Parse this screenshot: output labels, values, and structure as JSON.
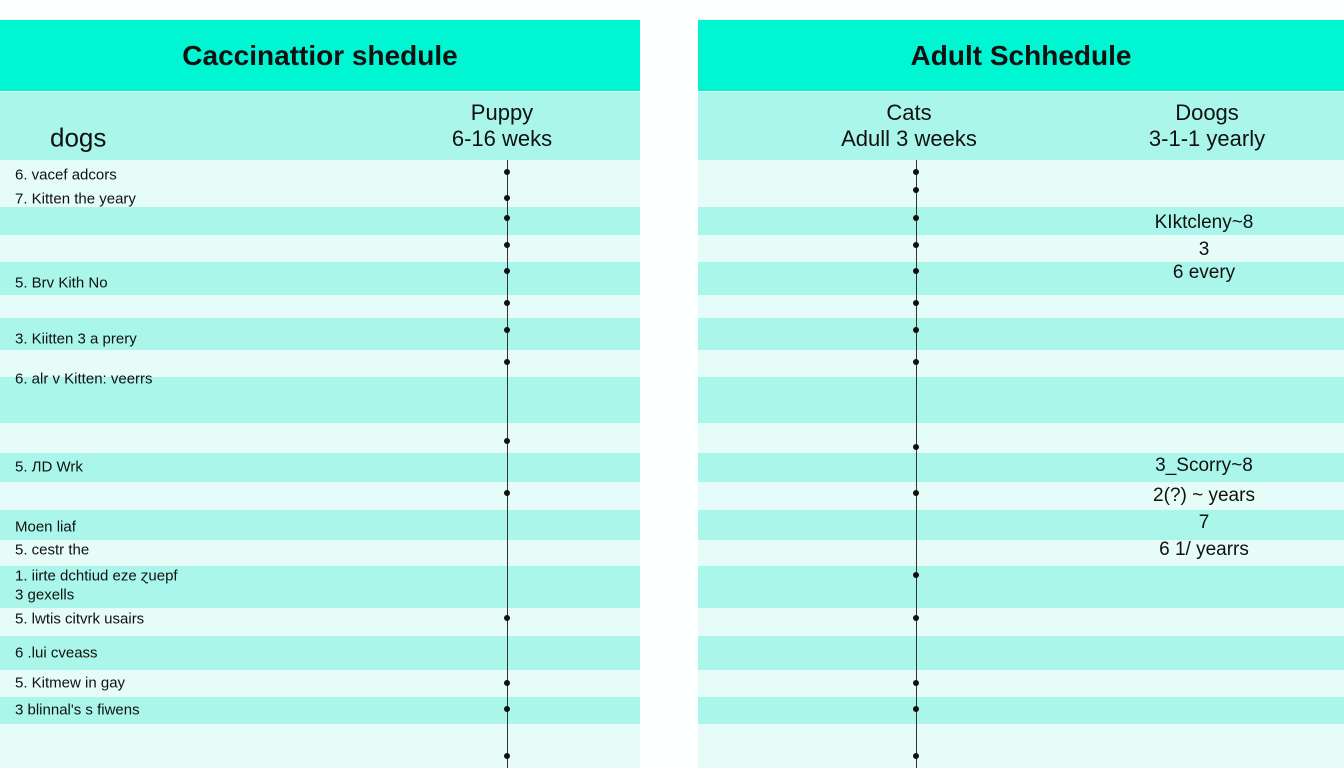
{
  "left_panel": {
    "title": "Caccinattior shedule",
    "col_label": "dogs",
    "col_header": {
      "line1": "Puppy",
      "line2": "6-16 weks"
    },
    "items": [
      "6. vacef adcors",
      "7. Kitten the yeary",
      "5. Brv Kith No",
      "3. Kiitten 3 a prery",
      "6. alr v Kitten: veerrs",
      "5. ЛD Wrk",
      "Moen liaf",
      "5. cestr the",
      "1. iirte dchtiud eze ɀuepf",
      "3  gexells",
      "5. lwtis citvrk usairs",
      "6 .lui cveass",
      "5. Kitmew  in gay",
      "3  blinnal's s fiwens"
    ]
  },
  "right_panel": {
    "title": "Adult Schhedule",
    "col1_header": {
      "line1": "Cats",
      "line2": "Adull 3 weeks"
    },
    "col2_header": {
      "line1": "Doogs",
      "line2": "3-1-1 yearly"
    },
    "col2_items": [
      "KIktcleny~8",
      "3",
      "6 every",
      "3_Scorry~8",
      "2(?) ~ years",
      "7",
      "6 1/ yearrs"
    ]
  },
  "colors": {
    "header": "#00f5d2",
    "band": "#aaf6ea",
    "light_band": "#e6fcf8"
  }
}
